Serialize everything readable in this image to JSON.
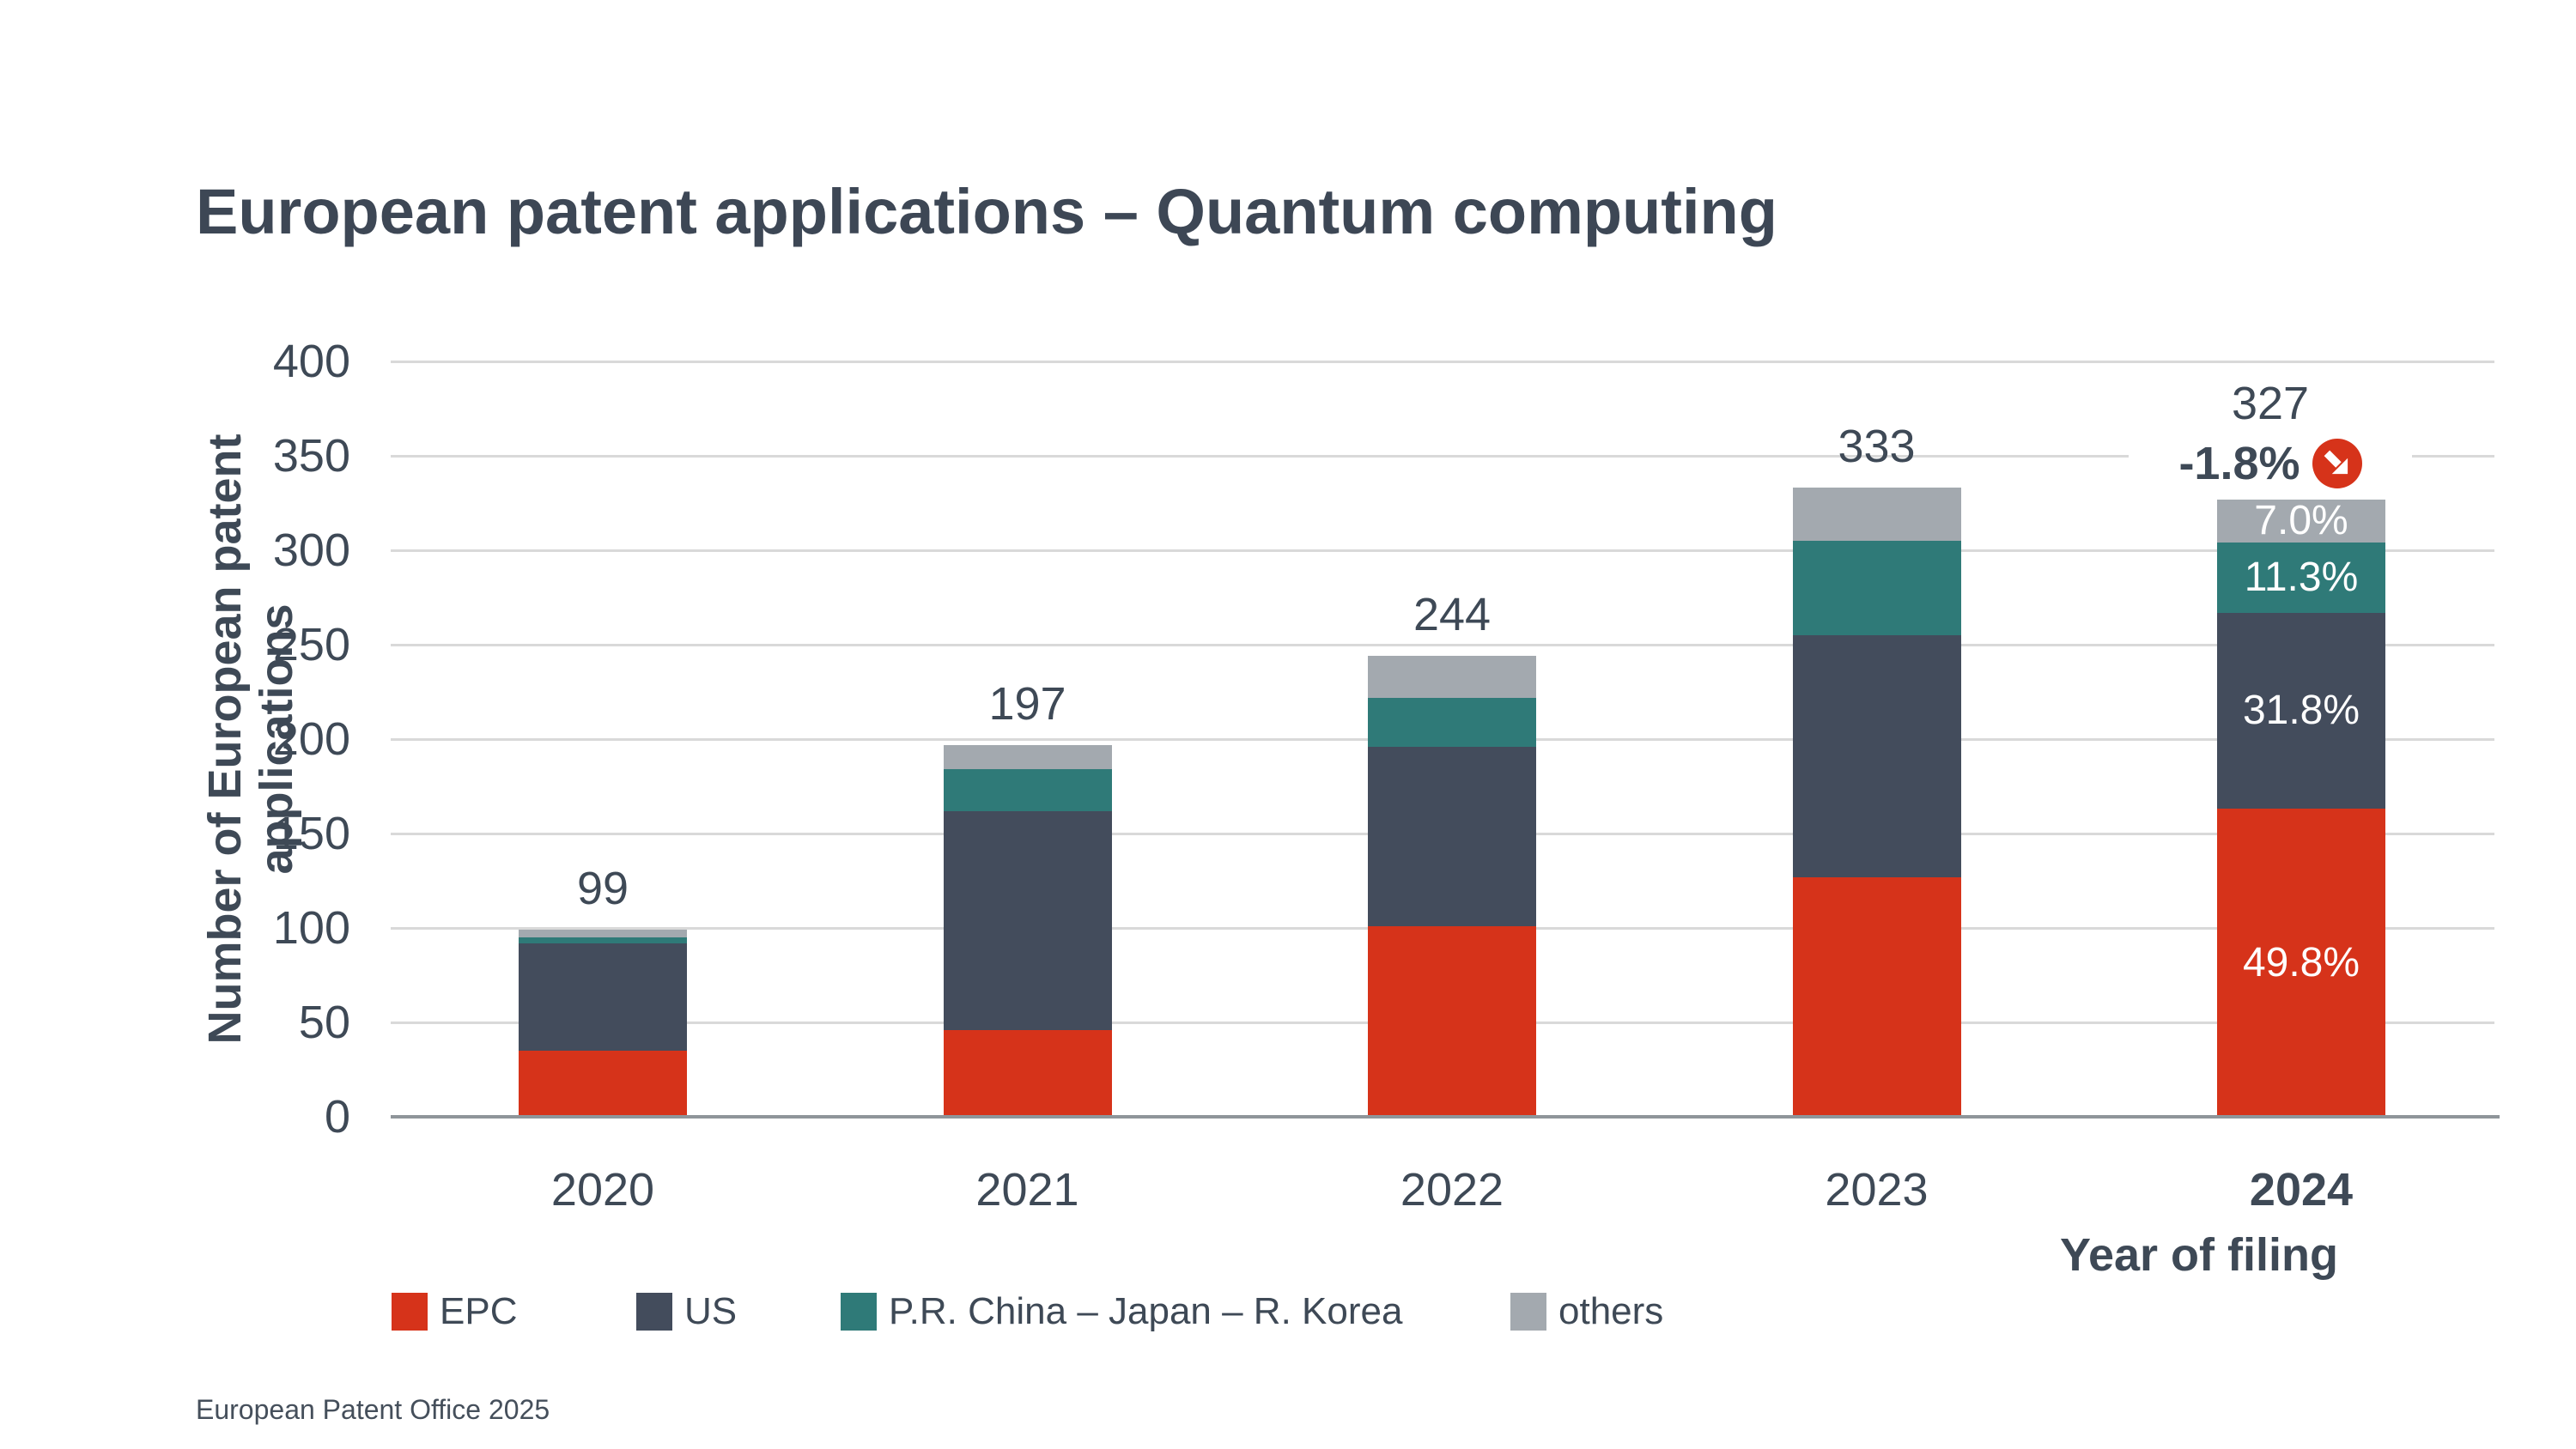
{
  "footer": "European Patent Office 2025",
  "colors": {
    "epc": "#d6331a",
    "us": "#434c5c",
    "cjk": "#2f7a78",
    "others": "#a3a9af",
    "text": "#3e4956",
    "grid": "#d9d9d9",
    "axis_line": "#8f959a",
    "badge": "#d6331a",
    "segment_label_text": "#ffffff",
    "background": "#ffffff"
  },
  "chart_data": {
    "type": "bar",
    "stacked": true,
    "title": "European patent applications – Quantum computing",
    "xlabel": "Year of filing",
    "ylabel": "Number of European patent applications",
    "ylim": [
      0,
      400
    ],
    "yticks": [
      0,
      50,
      100,
      150,
      200,
      250,
      300,
      350,
      400
    ],
    "grid": true,
    "legend_position": "bottom",
    "categories": [
      "2020",
      "2021",
      "2022",
      "2023",
      "2024"
    ],
    "series": [
      {
        "name": "EPC",
        "color": "#d6331a",
        "values": [
          35,
          46,
          101,
          127,
          163
        ],
        "pct_2024": "49.8%"
      },
      {
        "name": "US",
        "color": "#434c5c",
        "values": [
          57,
          116,
          95,
          128,
          104
        ],
        "pct_2024": "31.8%"
      },
      {
        "name": "P.R. China – Japan – R. Korea",
        "color": "#2f7a78",
        "values": [
          3,
          22,
          26,
          50,
          37
        ],
        "pct_2024": "11.3%"
      },
      {
        "name": "others",
        "color": "#a3a9af",
        "values": [
          4,
          13,
          22,
          28,
          23
        ],
        "pct_2024": "7.0%"
      }
    ],
    "totals": [
      99,
      197,
      244,
      333,
      327
    ],
    "highlighted_category": "2024",
    "annotation_2024": {
      "total": "327",
      "change": "-1.8%",
      "direction": "down"
    }
  }
}
